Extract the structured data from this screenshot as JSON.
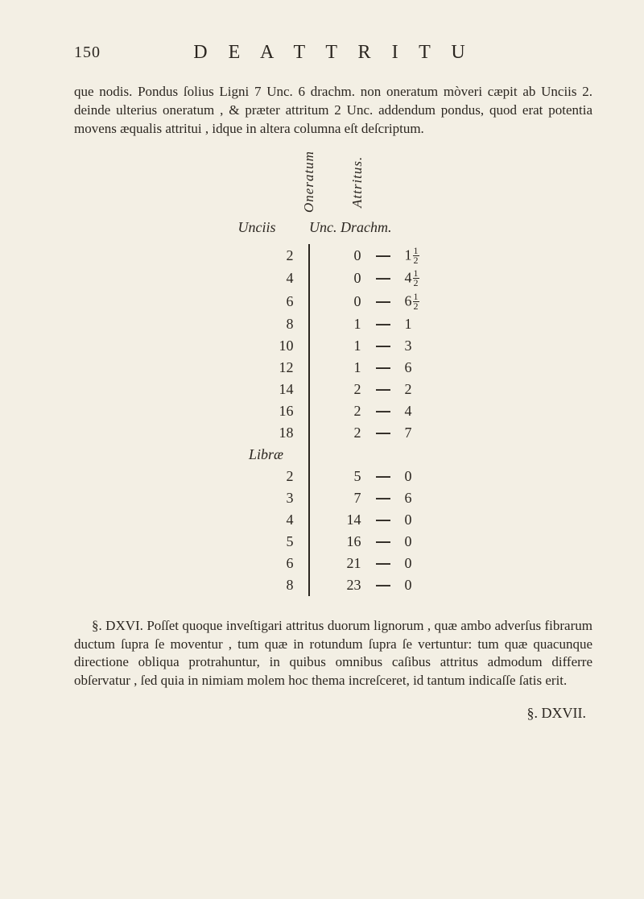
{
  "page_number": "150",
  "running_head": "D E   A T T R I T U",
  "paragraph1": "que nodis.  Pondus ſolius Ligni 7 Unc. 6 drachm. non oneratum mòveri cæ­pit ab Unciis 2. deinde ulterius oneratum , & præter attritum 2 Unc. adden­dum pondus, quod erat potentia movens æqualis attritui , idque in altera co­lumna eſt deſcriptum.",
  "col_left_head": "Oneratum",
  "col_right_head": "Attritus.",
  "sub_left": "Unciis",
  "sub_right": "Unc. Drachm.",
  "section_libra": "Libræ",
  "rows_unciis": [
    {
      "l": "2",
      "u": "0",
      "d": "1",
      "frac": true
    },
    {
      "l": "4",
      "u": "0",
      "d": "4",
      "frac": true
    },
    {
      "l": "6",
      "u": "0",
      "d": "6",
      "frac": true
    },
    {
      "l": "8",
      "u": "1",
      "d": "1",
      "frac": false
    },
    {
      "l": "10",
      "u": "1",
      "d": "3",
      "frac": false
    },
    {
      "l": "12",
      "u": "1",
      "d": "6",
      "frac": false
    },
    {
      "l": "14",
      "u": "2",
      "d": "2",
      "frac": false
    },
    {
      "l": "16",
      "u": "2",
      "d": "4",
      "frac": false
    },
    {
      "l": "18",
      "u": "2",
      "d": "7",
      "frac": false
    }
  ],
  "rows_librae": [
    {
      "l": "2",
      "u": "5",
      "d": "0"
    },
    {
      "l": "3",
      "u": "7",
      "d": "6"
    },
    {
      "l": "4",
      "u": "14",
      "d": "0"
    },
    {
      "l": "5",
      "u": "16",
      "d": "0"
    },
    {
      "l": "6",
      "u": "21",
      "d": "0"
    },
    {
      "l": "8",
      "u": "23",
      "d": "0"
    }
  ],
  "paragraph2": "§. DXVI. Poſſet quoque inveſtigari attritus duorum lignorum , quæ ambo adverſus fibrarum ductum ſupra ſe moventur , tum quæ in rotundum ſupra ſe vertuntur: tum quæ quacunque directione obliqua protrahuntur, in quibus om­nibus caſibus attritus admodum differre obſervatur , ſed quia in nimiam molem hoc thema increſceret, id tantum indicaſſe ſatis erit.",
  "signature": "§. DXVII.",
  "dash": "—",
  "colors": {
    "bg": "#f3efe4",
    "ink": "#2b2620"
  }
}
